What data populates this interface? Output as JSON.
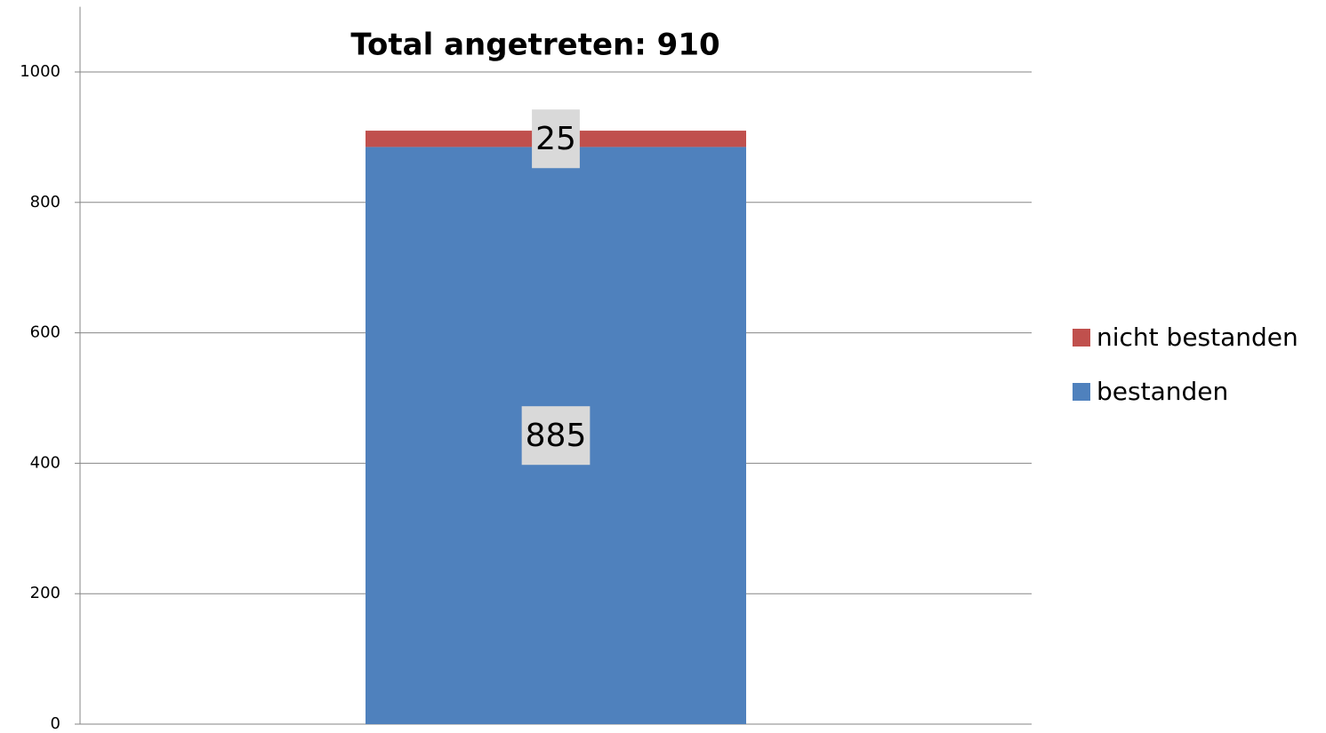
{
  "chart_data": {
    "type": "stacked_bar",
    "title": "Total angetreten: 910",
    "categories": [
      null
    ],
    "series": [
      {
        "name": "bestanden",
        "color": "#4f81bd",
        "values": [
          885
        ]
      },
      {
        "name": "nicht bestanden",
        "color": "#c0504d",
        "values": [
          25
        ]
      }
    ],
    "ylim": [
      0,
      1100
    ],
    "yticks": [
      0,
      200,
      400,
      600,
      800,
      1000
    ],
    "grid": true,
    "legend": "right"
  }
}
